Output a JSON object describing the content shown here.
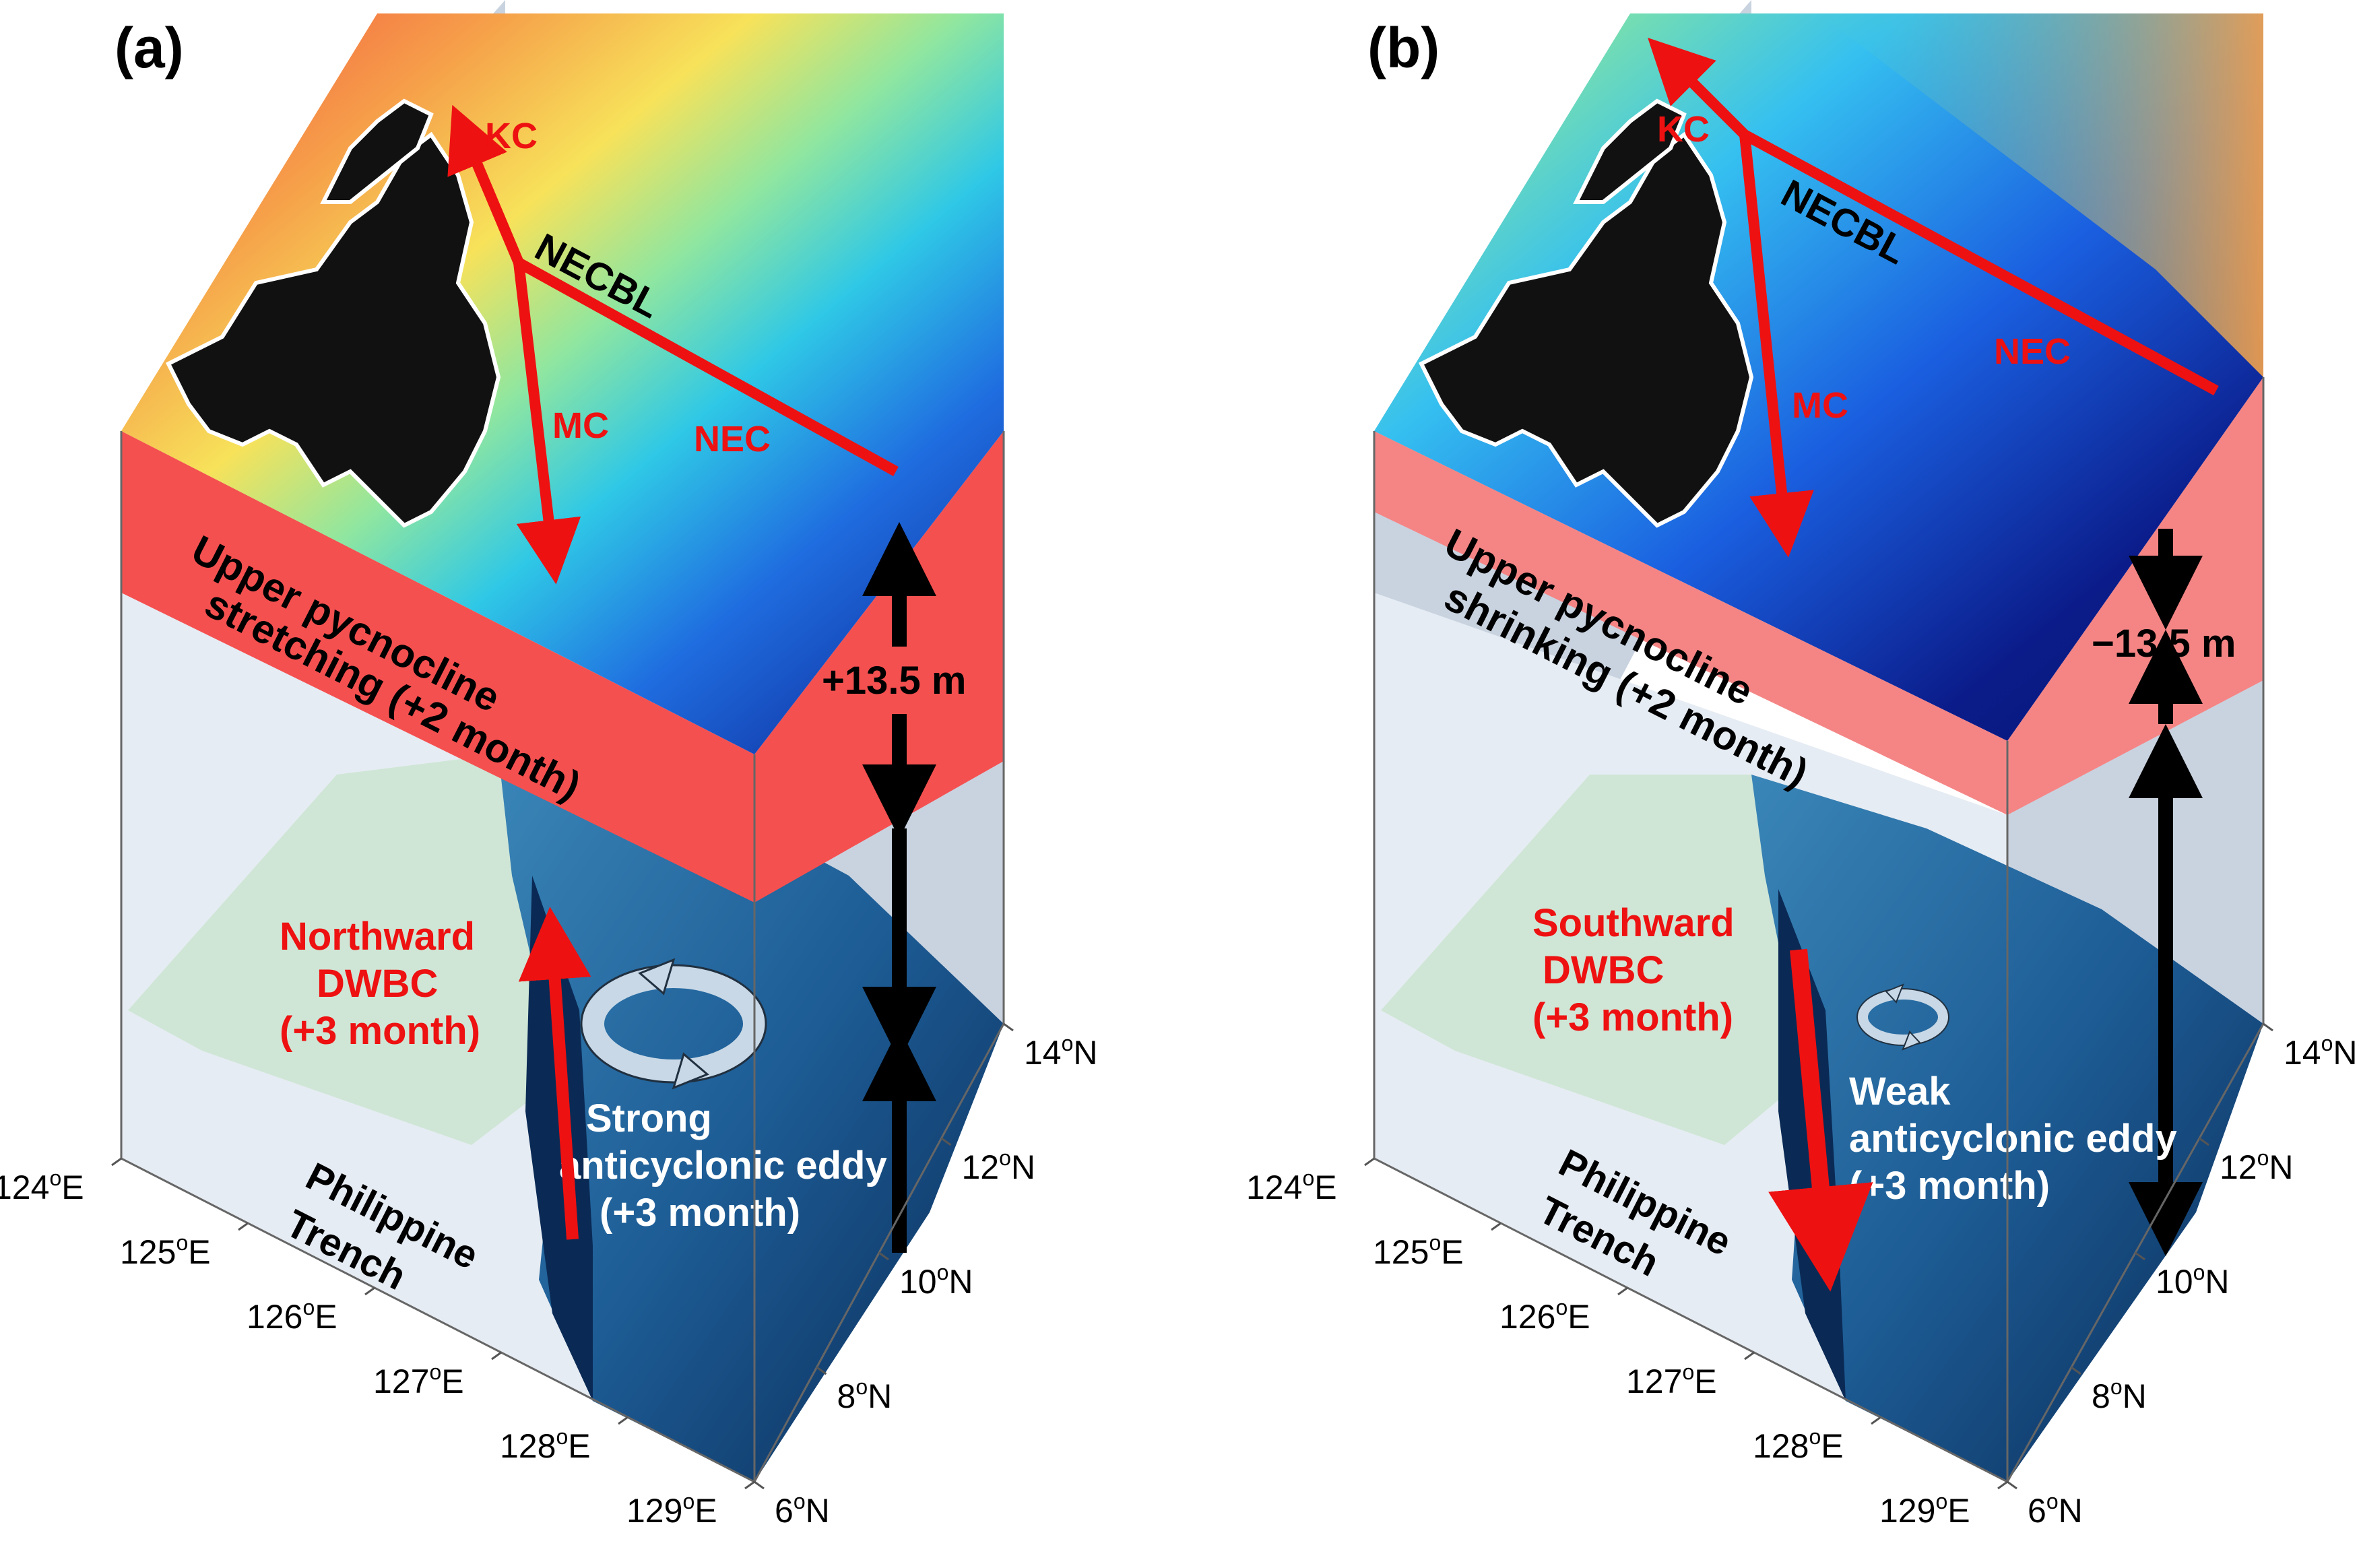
{
  "panels": [
    {
      "id": "a",
      "panel_label": "(a)",
      "currents": {
        "kc": "KC",
        "necbl": "NECBL",
        "mc": "MC",
        "nec": "NEC"
      },
      "pycnocline": {
        "line1": "Upper pycnocline",
        "line2": "stretching (+2 month)"
      },
      "thickness": "+13.5 m",
      "dwbc": {
        "line1": "Northward",
        "line2": "DWBC",
        "line3": "(+3 month)",
        "direction": "north"
      },
      "eddy": {
        "line1": "Strong",
        "line2": "anticyclonic eddy",
        "line3": "(+3 month)",
        "strength": "strong"
      },
      "trench": {
        "line1": "Philippine",
        "line2": "Trench"
      },
      "lon_ticks": [
        "124",
        "125",
        "126",
        "127",
        "128",
        "129"
      ],
      "lat_ticks": [
        "6",
        "8",
        "10",
        "12",
        "14"
      ],
      "lon_suffix": "E",
      "lat_suffix": "N",
      "degree_mark": "o"
    },
    {
      "id": "b",
      "panel_label": "(b)",
      "currents": {
        "kc": "KC",
        "necbl": "NECBL",
        "mc": "MC",
        "nec": "NEC"
      },
      "pycnocline": {
        "line1": "Upper pycnocline",
        "line2": "shrinking (+2 month)"
      },
      "thickness": "−13.5 m",
      "dwbc": {
        "line1": "Southward",
        "line2": "DWBC",
        "line3": "(+3 month)",
        "direction": "south"
      },
      "eddy": {
        "line1": "Weak",
        "line2": "anticyclonic eddy",
        "line3": "(+3 month)",
        "strength": "weak"
      },
      "trench": {
        "line1": "Philippine",
        "line2": "Trench"
      },
      "lon_ticks": [
        "124",
        "125",
        "126",
        "127",
        "128",
        "129"
      ],
      "lat_ticks": [
        "6",
        "8",
        "10",
        "12",
        "14"
      ],
      "lon_suffix": "E",
      "lat_suffix": "N",
      "degree_mark": "o"
    }
  ],
  "colors": {
    "current_arrow": "#ee1111",
    "box_side_a": "#f55050",
    "box_side_b": "#f58585",
    "land": "#111111",
    "eddy_fill": "#c8d8e6",
    "eddy_stroke": "#203040",
    "shelf": "#cfe6d6",
    "trench_deep": "#0a2a55"
  }
}
